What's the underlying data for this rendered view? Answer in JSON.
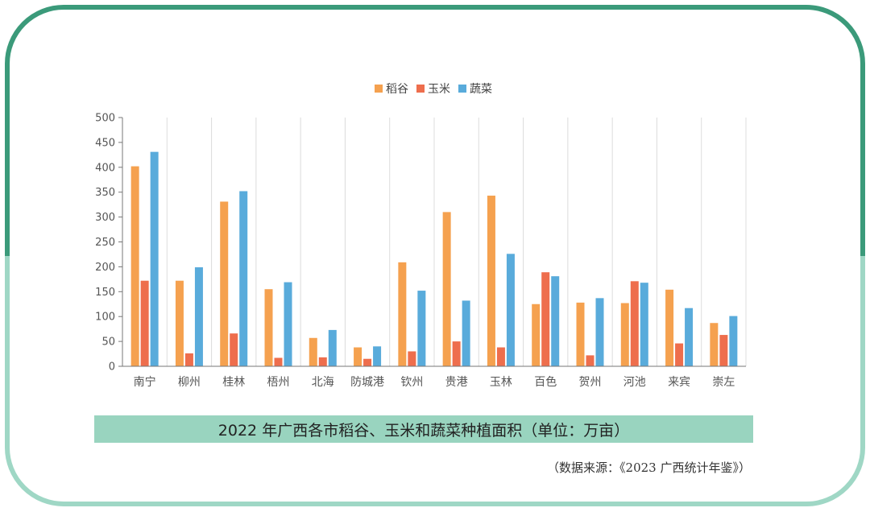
{
  "colors": {
    "rice": "#f5a14f",
    "corn": "#ee6e4d",
    "veg": "#59abdb",
    "frame_top": "#3b9a7a",
    "frame_bottom": "#9fd7c5",
    "caption_bg": "#99d4bf"
  },
  "caption": "2022 年广西各市稻谷、玉米和蔬菜种植面积（单位：万亩）",
  "source": "（数据来源：《2023 广西统计年鉴》）",
  "chart_data": {
    "type": "bar",
    "title": "2022 年广西各市稻谷、玉米和蔬菜种植面积（单位：万亩）",
    "ylim": [
      0,
      500
    ],
    "yticks": [
      0,
      50,
      100,
      150,
      200,
      250,
      300,
      350,
      400,
      450,
      500
    ],
    "categories": [
      "南宁",
      "柳州",
      "桂林",
      "梧州",
      "北海",
      "防城港",
      "钦州",
      "贵港",
      "玉林",
      "百色",
      "贺州",
      "河池",
      "来宾",
      "崇左"
    ],
    "series": [
      {
        "name": "稻谷",
        "key": "rice",
        "values": [
          402,
          172,
          331,
          155,
          57,
          38,
          209,
          310,
          343,
          125,
          128,
          127,
          154,
          87
        ]
      },
      {
        "name": "玉米",
        "key": "corn",
        "values": [
          172,
          26,
          66,
          17,
          18,
          15,
          30,
          50,
          38,
          189,
          22,
          171,
          46,
          63
        ]
      },
      {
        "name": "蔬菜",
        "key": "veg",
        "values": [
          431,
          199,
          352,
          169,
          73,
          40,
          152,
          132,
          226,
          181,
          137,
          168,
          117,
          101
        ]
      }
    ],
    "legend_position": "top-center",
    "grid": "vertical"
  }
}
